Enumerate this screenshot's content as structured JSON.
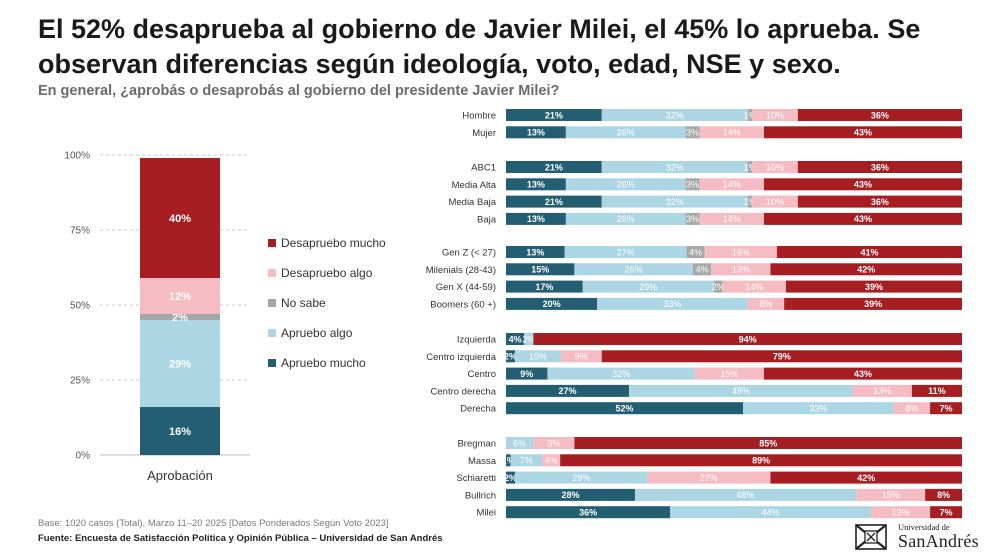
{
  "title": "El 52% desaprueba al gobierno de Javier Milei, el 45% lo aprueba. Se observan diferencias según ideología, voto, edad, NSE y sexo.",
  "subtitle": "En general, ¿aprobás o desaprobás al gobierno del presidente Javier Milei?",
  "footnote": "Base: 1020 casos (Total), Marzo 11–20 2025 [Datos Ponderados Según Voto 2023]",
  "source": "Fuente: Encuesta de Satisfacción Política y Opinión Pública – Universidad de San Andrés",
  "logo": {
    "line1": "Universidad de",
    "line2": "SanAndrés"
  },
  "colors": {
    "apruebo_mucho": "#235e72",
    "apruebo_algo": "#acd6e4",
    "no_sabe": "#a7a7a7",
    "desapruebo_algo": "#f6bcc3",
    "desapruebo_mucho": "#a61d22"
  },
  "legend": [
    {
      "label": "Desapruebo mucho",
      "color": "#a61d22"
    },
    {
      "label": "Desapruebo algo",
      "color": "#f6bcc3"
    },
    {
      "label": "No sabe",
      "color": "#a7a7a7"
    },
    {
      "label": "Apruebo algo",
      "color": "#acd6e4"
    },
    {
      "label": "Apruebo mucho",
      "color": "#235e72"
    }
  ],
  "chart_data": [
    {
      "type": "bar",
      "stacked": true,
      "categories": [
        "Aprobación"
      ],
      "ylim": [
        0,
        100
      ],
      "yticks": [
        "0%",
        "25%",
        "50%",
        "75%",
        "100%"
      ],
      "grid": true,
      "series": [
        {
          "name": "Apruebo mucho",
          "values": [
            16
          ],
          "label": "16%"
        },
        {
          "name": "Apruebo algo",
          "values": [
            29
          ],
          "label": "29%"
        },
        {
          "name": "No sabe",
          "values": [
            2
          ],
          "label": "2%"
        },
        {
          "name": "Desapruebo algo",
          "values": [
            12
          ],
          "label": "12%"
        },
        {
          "name": "Desapruebo mucho",
          "values": [
            40
          ],
          "label": "40%"
        }
      ],
      "legend_position": "right"
    },
    {
      "type": "bar",
      "orientation": "horizontal",
      "stacked": true,
      "series_names": [
        "Apruebo mucho",
        "Apruebo algo",
        "No sabe",
        "Desapruebo algo",
        "Desapruebo mucho"
      ],
      "groups": [
        {
          "rows": [
            {
              "label": "Hombre",
              "values": [
                21,
                32,
                1,
                10,
                36
              ]
            },
            {
              "label": "Mujer",
              "values": [
                13,
                26,
                3,
                14,
                43
              ]
            }
          ]
        },
        {
          "rows": [
            {
              "label": "ABC1",
              "values": [
                21,
                32,
                1,
                10,
                36
              ]
            },
            {
              "label": "Media Alta",
              "values": [
                13,
                26,
                3,
                14,
                43
              ]
            },
            {
              "label": "Media Baja",
              "values": [
                21,
                32,
                1,
                10,
                36
              ]
            },
            {
              "label": "Baja",
              "values": [
                13,
                26,
                3,
                14,
                43
              ]
            }
          ]
        },
        {
          "rows": [
            {
              "label": "Gen Z (< 27)",
              "values": [
                13,
                27,
                4,
                16,
                41
              ]
            },
            {
              "label": "Milenials (28-43)",
              "values": [
                15,
                26,
                4,
                13,
                42
              ]
            },
            {
              "label": "Gen X (44-59)",
              "values": [
                17,
                29,
                2,
                14,
                39
              ]
            },
            {
              "label": "Boomers (60 +)",
              "values": [
                20,
                33,
                0,
                8,
                39
              ]
            }
          ]
        },
        {
          "rows": [
            {
              "label": "Izquierda",
              "values": [
                4,
                2,
                0,
                0,
                94
              ]
            },
            {
              "label": "Centro izquierda",
              "values": [
                2,
                10,
                0,
                9,
                79
              ]
            },
            {
              "label": "Centro",
              "values": [
                9,
                32,
                0,
                15,
                43
              ]
            },
            {
              "label": "Centro derecha",
              "values": [
                27,
                49,
                0,
                13,
                11
              ]
            },
            {
              "label": "Derecha",
              "values": [
                52,
                33,
                0,
                8,
                7
              ]
            }
          ]
        },
        {
          "rows": [
            {
              "label": "Bregman",
              "values": [
                0,
                6,
                0,
                9,
                85
              ]
            },
            {
              "label": "Massa",
              "values": [
                1,
                7,
                0,
                4,
                89
              ]
            },
            {
              "label": "Schiaretti",
              "values": [
                2,
                29,
                0,
                27,
                42
              ]
            },
            {
              "label": "Bullrich",
              "values": [
                28,
                48,
                0,
                15,
                8
              ]
            },
            {
              "label": "Milei",
              "values": [
                36,
                44,
                0,
                13,
                7
              ]
            }
          ]
        }
      ]
    }
  ]
}
